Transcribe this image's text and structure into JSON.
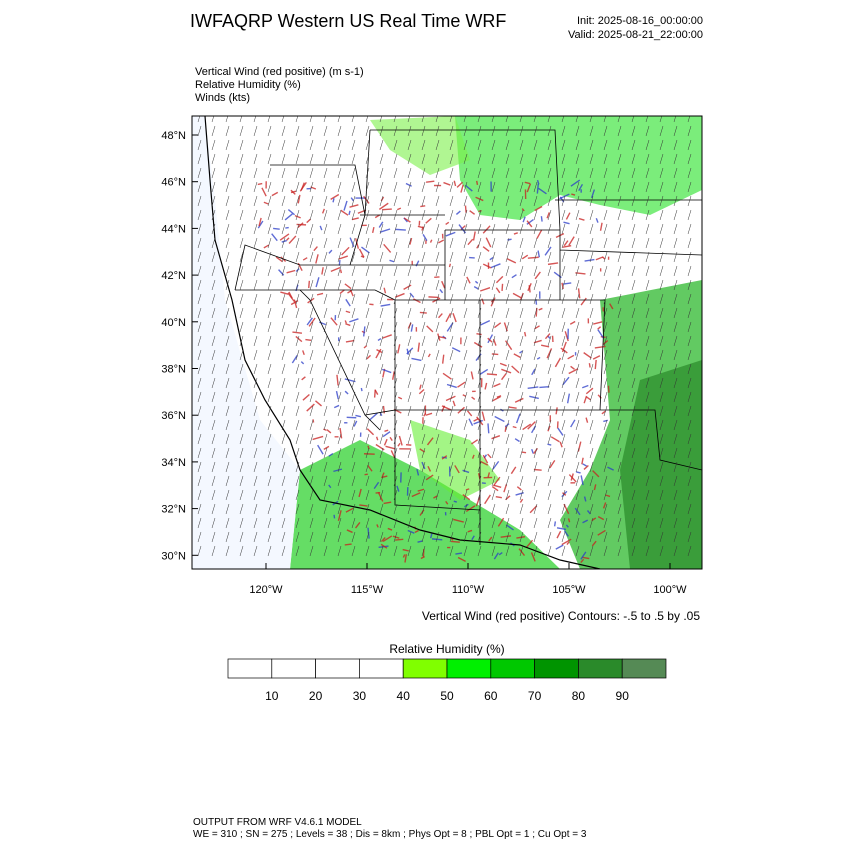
{
  "header": {
    "title": "IWFAQRP Western US Real Time WRF",
    "init": "Init: 2025-08-16_00:00:00",
    "valid": "Valid: 2025-08-21_22:00:00"
  },
  "fields": [
    "Vertical Wind (red positive)   (m s-1)",
    "Relative Humidity   (%)",
    "Winds   (kts)"
  ],
  "map": {
    "lat_labels": [
      "48°N",
      "46°N",
      "44°N",
      "42°N",
      "40°N",
      "38°N",
      "36°N",
      "34°N",
      "32°N",
      "30°N"
    ],
    "lon_labels": [
      "120°W",
      "115°W",
      "110°W",
      "105°W",
      "100°W"
    ],
    "contour_note": "Vertical Wind (red positive) Contours: -.5 to .5 by .05"
  },
  "colorbar": {
    "title": "Relative Humidity   (%)",
    "labels": [
      10,
      20,
      30,
      40,
      50,
      60,
      70,
      80,
      90
    ],
    "colors": [
      "#ffffff",
      "#ffffff",
      "#ffffff",
      "#ffffff",
      "#80ff00",
      "#00f000",
      "#00c800",
      "#009400",
      "#2a8a2a",
      "#558a55"
    ]
  },
  "footer": [
    "OUTPUT FROM WRF V4.6.1 MODEL",
    "WE = 310 ; SN = 275 ; Levels = 38 ; Dis = 8km ; Phys Opt = 8 ; PBL Opt = 1 ; Cu Opt = 3"
  ]
}
